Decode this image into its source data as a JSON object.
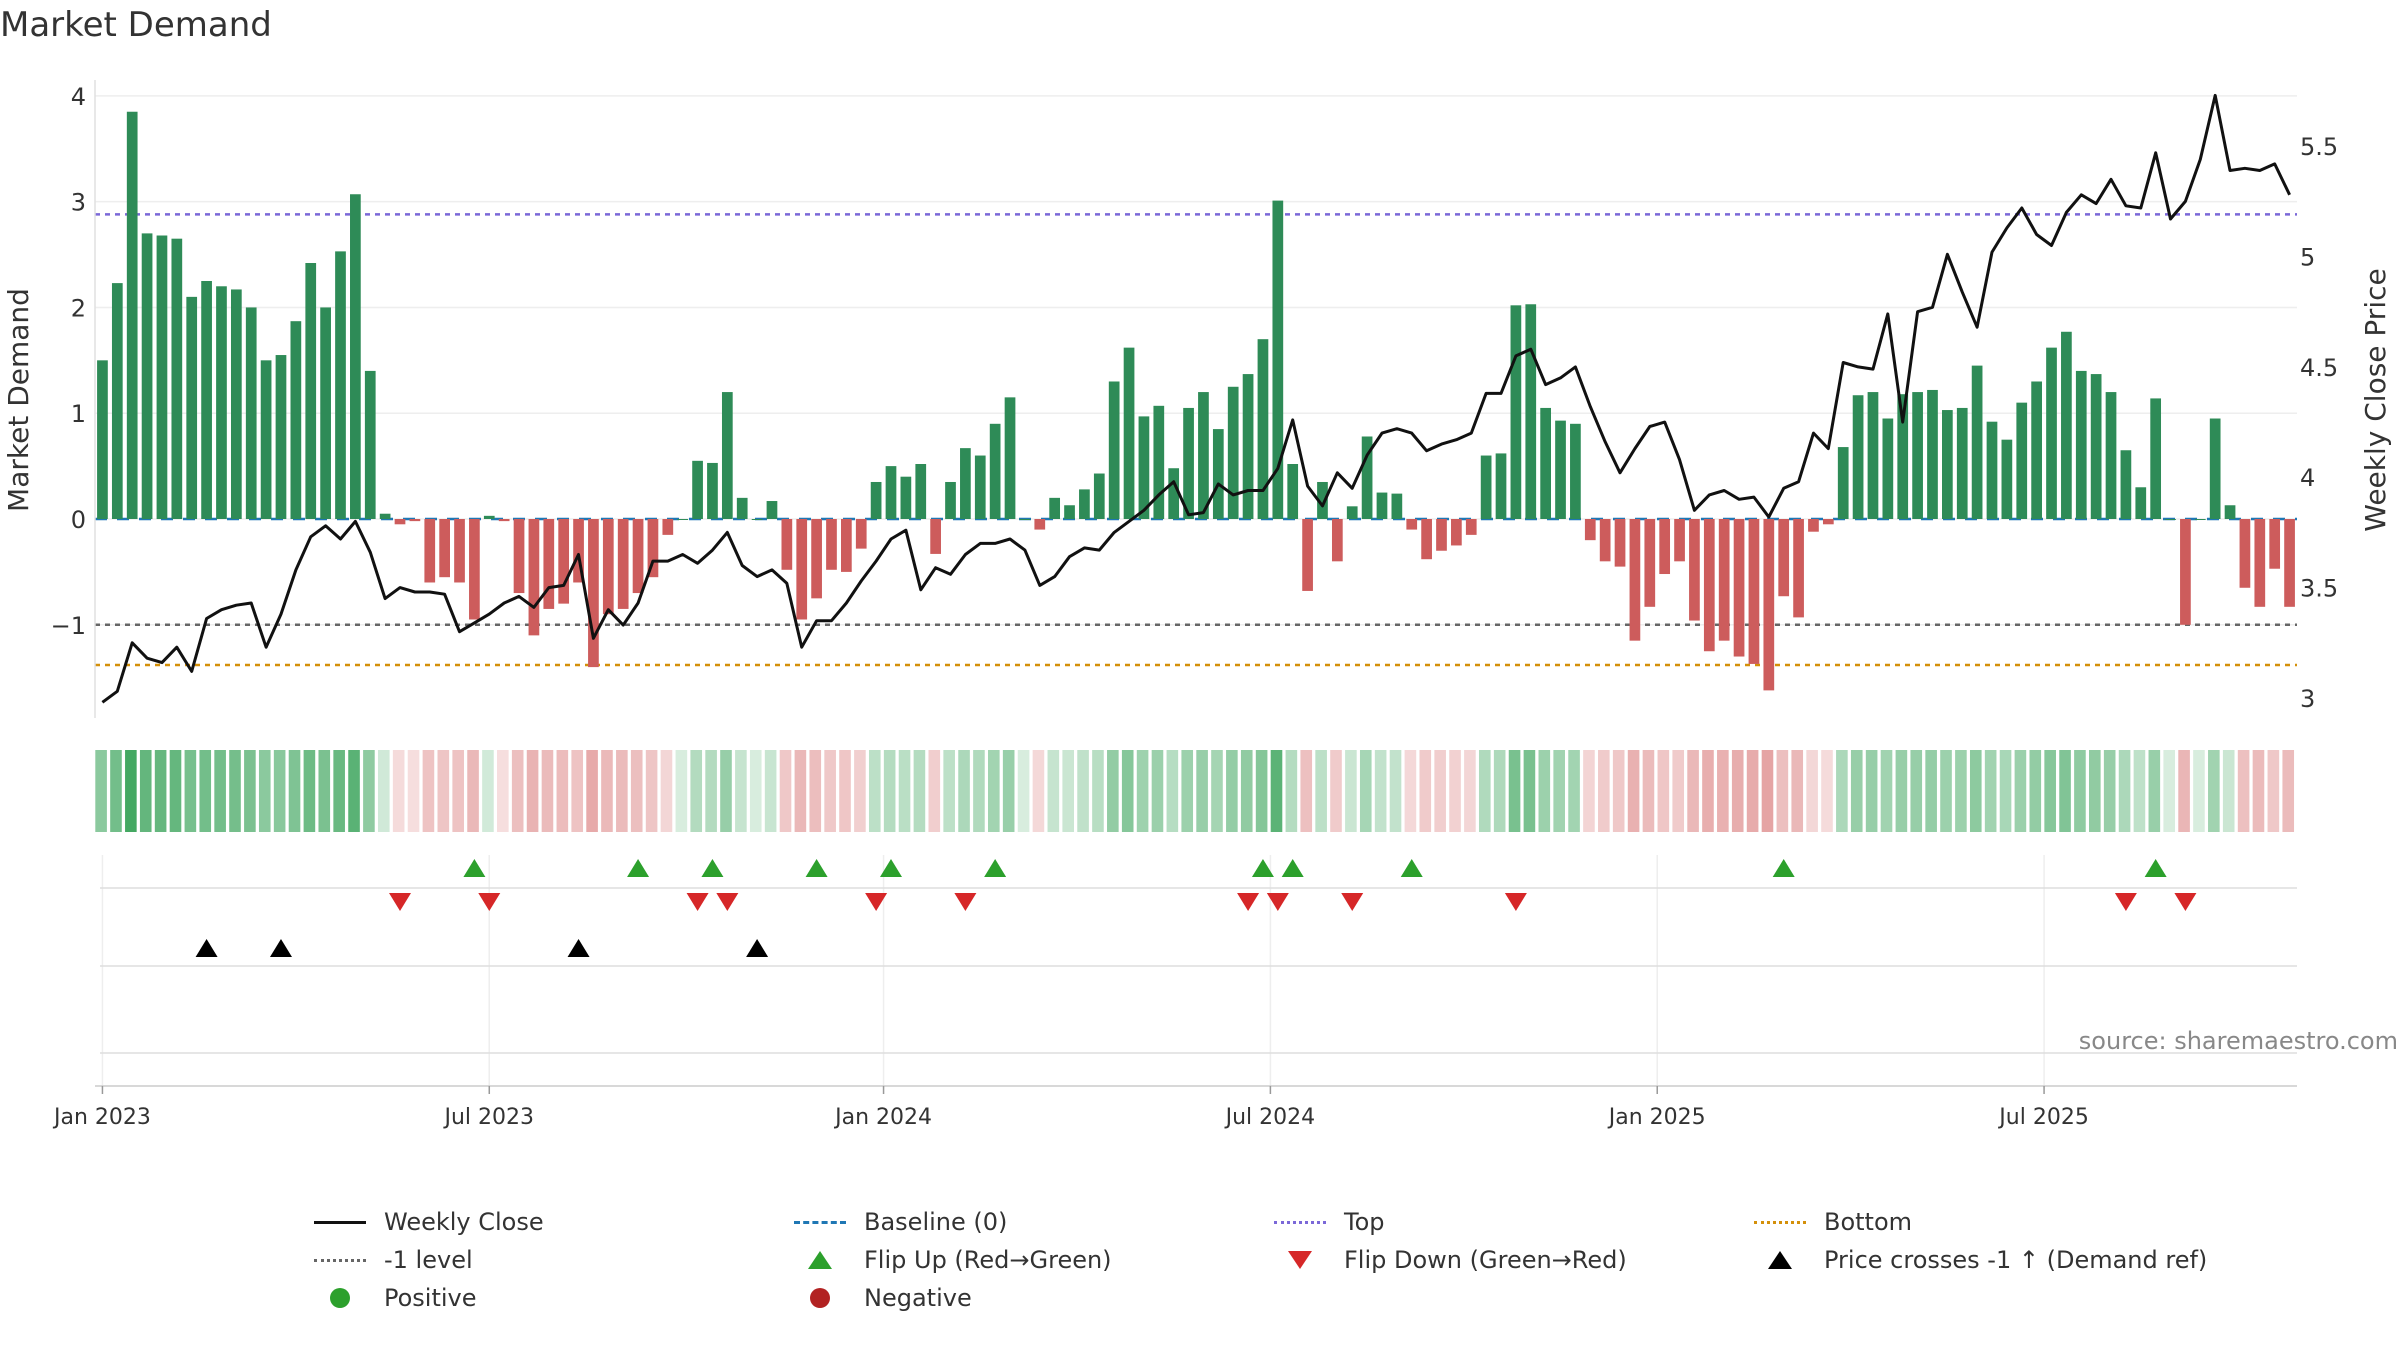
{
  "chart_data": {
    "type": "bar+line",
    "title": "Market Demand",
    "ylabel_left": "Market Demand",
    "ylabel_right": "Weekly Close Price",
    "source": "source: sharemaestro.com",
    "left_ticks": [
      "4",
      "3",
      "2",
      "1",
      "0",
      "−1"
    ],
    "right_ticks": [
      "5.5",
      "5",
      "4.5",
      "4",
      "3.5",
      "3"
    ],
    "x_tick_labels": [
      "Jan 2023",
      "Jul 2023",
      "Jan 2024",
      "Jul 2024",
      "Jan 2025",
      "Jul 2025"
    ],
    "ylim_left": [
      -1.9,
      4.15
    ],
    "ylim_right": [
      2.9,
      5.8
    ],
    "reference_lines": {
      "baseline": 0,
      "top": 2.88,
      "bottom": -1.38,
      "minus_one": -1
    },
    "demand": [
      1.5,
      2.23,
      3.85,
      2.7,
      2.68,
      2.65,
      2.1,
      2.25,
      2.2,
      2.17,
      2.0,
      1.5,
      1.55,
      1.87,
      2.42,
      2.0,
      2.53,
      3.07,
      1.4,
      0.05,
      -0.05,
      -0.02,
      -0.6,
      -0.55,
      -0.6,
      -0.95,
      0.03,
      -0.02,
      -0.7,
      -1.1,
      -0.85,
      -0.8,
      -0.6,
      -1.4,
      -0.9,
      -0.85,
      -0.7,
      -0.55,
      -0.15,
      0.0,
      0.55,
      0.53,
      1.2,
      0.2,
      0.0,
      0.17,
      -0.48,
      -0.95,
      -0.75,
      -0.48,
      -0.5,
      -0.28,
      0.35,
      0.5,
      0.4,
      0.52,
      -0.33,
      0.35,
      0.67,
      0.6,
      0.9,
      1.15,
      0.0,
      -0.1,
      0.2,
      0.13,
      0.28,
      0.43,
      1.3,
      1.62,
      0.97,
      1.07,
      0.48,
      1.05,
      1.2,
      0.85,
      1.25,
      1.37,
      1.7,
      3.01,
      0.52,
      -0.68,
      0.35,
      -0.4,
      0.12,
      0.78,
      0.25,
      0.24,
      -0.1,
      -0.38,
      -0.3,
      -0.25,
      -0.15,
      0.6,
      0.62,
      2.02,
      2.03,
      1.05,
      0.93,
      0.9,
      -0.2,
      -0.4,
      -0.45,
      -1.15,
      -0.83,
      -0.52,
      -0.4,
      -0.96,
      -1.25,
      -1.15,
      -1.3,
      -1.37,
      -1.62,
      -0.73,
      -0.93,
      -0.12,
      -0.05,
      0.68,
      1.17,
      1.2,
      0.95,
      1.18,
      1.2,
      1.22,
      1.03,
      1.05,
      1.45,
      0.92,
      0.75,
      1.1,
      1.3,
      1.62,
      1.77,
      1.4,
      1.37,
      1.2,
      0.65,
      0.3,
      1.14,
      0.0,
      -1.0,
      0.0,
      0.95,
      0.13,
      -0.65,
      -0.83,
      -0.47,
      -0.83
    ],
    "weekly_close": [
      2.98,
      3.03,
      3.25,
      3.18,
      3.16,
      3.23,
      3.12,
      3.36,
      3.4,
      3.42,
      3.43,
      3.23,
      3.38,
      3.58,
      3.73,
      3.78,
      3.72,
      3.8,
      3.66,
      3.45,
      3.5,
      3.48,
      3.48,
      3.47,
      3.3,
      3.34,
      3.38,
      3.43,
      3.46,
      3.41,
      3.5,
      3.51,
      3.65,
      3.27,
      3.4,
      3.33,
      3.43,
      3.62,
      3.62,
      3.65,
      3.61,
      3.67,
      3.75,
      3.6,
      3.55,
      3.58,
      3.52,
      3.23,
      3.35,
      3.35,
      3.43,
      3.53,
      3.62,
      3.72,
      3.76,
      3.49,
      3.59,
      3.56,
      3.65,
      3.7,
      3.7,
      3.72,
      3.67,
      3.51,
      3.55,
      3.64,
      3.68,
      3.67,
      3.75,
      3.8,
      3.85,
      3.92,
      3.98,
      3.83,
      3.84,
      3.97,
      3.92,
      3.94,
      3.94,
      4.04,
      4.26,
      3.96,
      3.87,
      4.02,
      3.95,
      4.1,
      4.2,
      4.22,
      4.2,
      4.12,
      4.15,
      4.17,
      4.2,
      4.38,
      4.38,
      4.55,
      4.58,
      4.42,
      4.45,
      4.5,
      4.32,
      4.16,
      4.02,
      4.13,
      4.23,
      4.25,
      4.08,
      3.85,
      3.92,
      3.94,
      3.9,
      3.91,
      3.82,
      3.95,
      3.98,
      4.2,
      4.13,
      4.52,
      4.5,
      4.49,
      4.74,
      4.25,
      4.75,
      4.77,
      5.01,
      4.84,
      4.68,
      5.02,
      5.13,
      5.22,
      5.1,
      5.05,
      5.2,
      5.28,
      5.24,
      5.35,
      5.23,
      5.22,
      5.47,
      5.17,
      5.25,
      5.44,
      5.73,
      5.39,
      5.4,
      5.39,
      5.42,
      5.28
    ],
    "flip_up_weeks": [
      25,
      36,
      41,
      48,
      53,
      60,
      78,
      80,
      88,
      113,
      138
    ],
    "flip_down_weeks": [
      20,
      26,
      40,
      42,
      52,
      58,
      77,
      79,
      84,
      95,
      136,
      140
    ],
    "price_cross_weeks": [
      7,
      12,
      32,
      44
    ]
  },
  "legend": {
    "weekly_close": "Weekly Close",
    "baseline": "Baseline (0)",
    "top": "Top",
    "bottom": "Bottom",
    "minus_one": "-1 level",
    "flip_up": "Flip Up (Red→Green)",
    "flip_down": "Flip Down (Green→Red)",
    "price_cross": "Price crosses -1 ↑ (Demand ref)",
    "positive": "Positive",
    "negative": "Negative"
  },
  "colors": {
    "positive": "#2e8b57",
    "negative": "#cd5c5c",
    "price": "#111111",
    "baseline": "#1f77b4",
    "top": "#7b68d8",
    "bottom": "#d4900a",
    "minus_one": "#666666",
    "flip_up": "#2ca02c",
    "flip_down": "#d62728",
    "price_cross": "#000000",
    "positive_dot": "#2ca02c",
    "negative_dot": "#b22222"
  }
}
